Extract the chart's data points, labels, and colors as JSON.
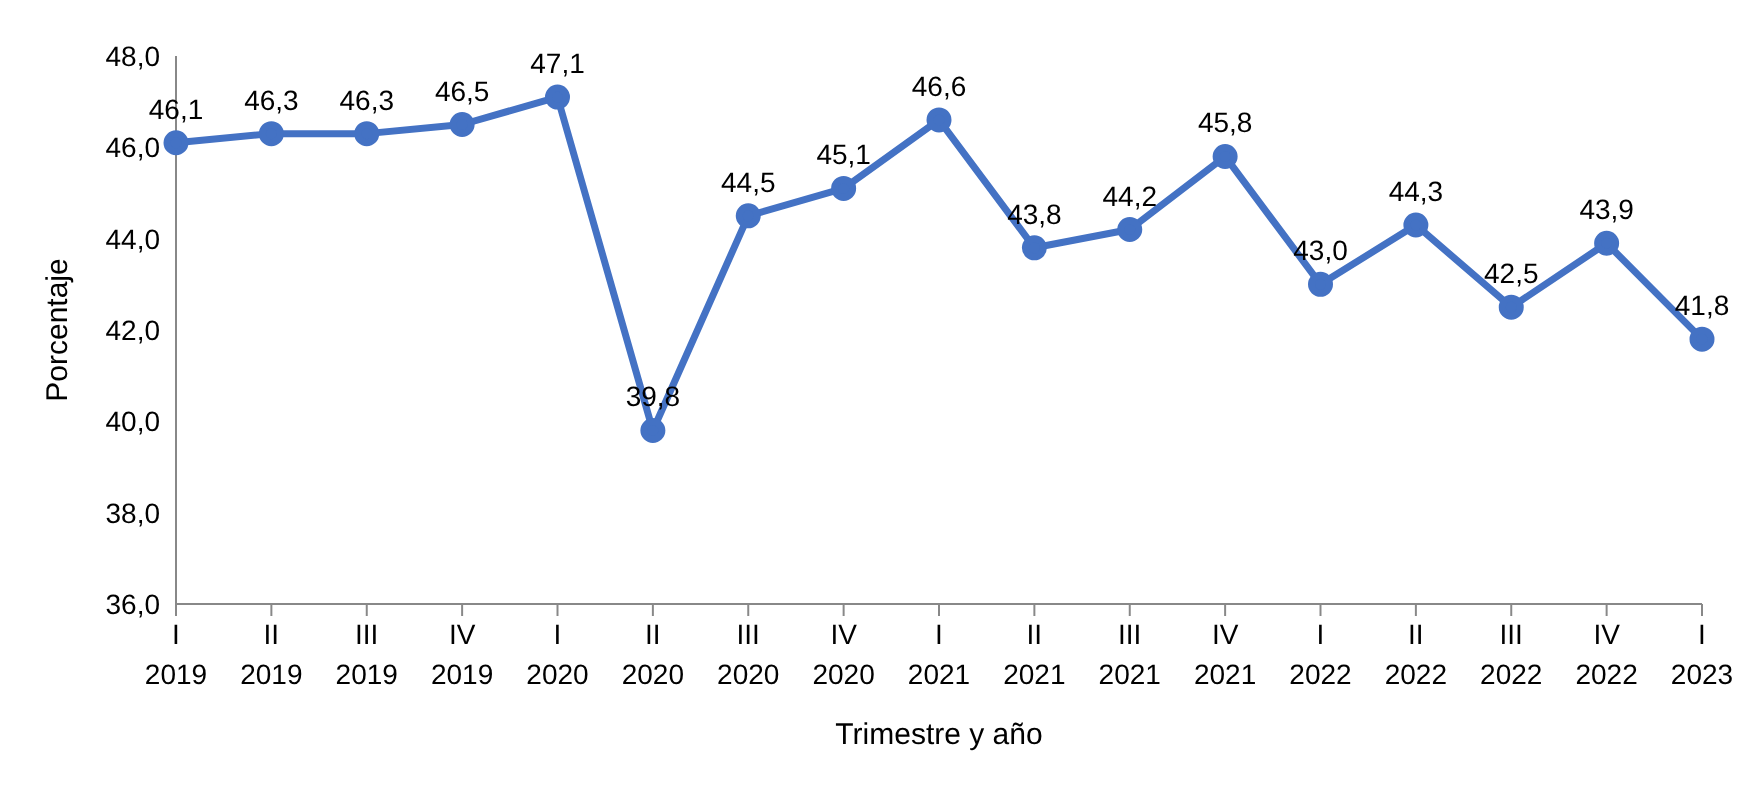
{
  "chart_data": {
    "type": "line",
    "xlabel": "Trimestre y año",
    "ylabel": "Porcentaje",
    "categories": [
      "I\n2019",
      "II\n2019",
      "III\n2019",
      "IV\n2019",
      "I\n2020",
      "II\n2020",
      "III\n2020",
      "IV\n2020",
      "I\n2021",
      "II\n2021",
      "III\n2021",
      "IV\n2021",
      "I\n2022",
      "II\n2022",
      "III\n2022",
      "IV\n2022",
      "I\n2023"
    ],
    "series": [
      {
        "color": "#4472c4",
        "values": [
          46.1,
          46.3,
          46.3,
          46.5,
          47.1,
          39.8,
          44.5,
          45.1,
          46.6,
          43.8,
          44.2,
          45.8,
          43.0,
          44.3,
          42.5,
          43.9,
          41.8
        ],
        "value_labels": [
          "46,1",
          "46,3",
          "46,3",
          "46,5",
          "47,1",
          "39,8",
          "44,5",
          "45,1",
          "46,6",
          "43,8",
          "44,2",
          "45,8",
          "43,0",
          "44,3",
          "42,5",
          "43,9",
          "41,8"
        ]
      }
    ],
    "ylim": [
      36,
      48
    ],
    "yticks": [
      {
        "value": 36,
        "label": "36,0"
      },
      {
        "value": 38,
        "label": "38,0"
      },
      {
        "value": 40,
        "label": "40,0"
      },
      {
        "value": 42,
        "label": "42,0"
      },
      {
        "value": 44,
        "label": "44,0"
      },
      {
        "value": 46,
        "label": "46,0"
      },
      {
        "value": 48,
        "label": "48,0"
      }
    ],
    "grid": false,
    "legend": false,
    "marker": "circle",
    "line_style": "solid"
  }
}
